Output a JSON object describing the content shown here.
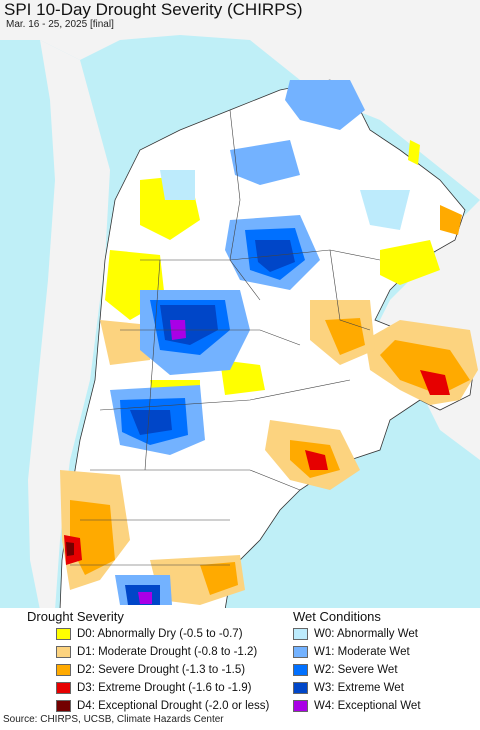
{
  "map": {
    "title": "SPI 10-Day Drought Severity (CHIRPS)",
    "subtitle": "Mar. 16 - 25, 2025 [final]",
    "colors": {
      "ocean": "#bfeff7",
      "land": "#ffffff",
      "outside": "#f3f3f3",
      "border": "#333333"
    }
  },
  "legend": {
    "drought_title": "Drought Severity",
    "wet_title": "Wet Conditions",
    "drought_items": [
      {
        "label": "D0: Abnormally Dry (-0.5 to -0.7)",
        "color": "#ffff00"
      },
      {
        "label": "D1: Moderate Drought (-0.8 to -1.2)",
        "color": "#fcd37f"
      },
      {
        "label": "D2: Severe Drought (-1.3 to -1.5)",
        "color": "#ffaa00"
      },
      {
        "label": "D3: Extreme Drought (-1.6 to -1.9)",
        "color": "#e60000"
      },
      {
        "label": "D4: Exceptional Drought (-2.0 or less)",
        "color": "#730000"
      }
    ],
    "wet_items": [
      {
        "label": "W0: Abnormally Wet",
        "color": "#bdebfc"
      },
      {
        "label": "W1: Moderate Wet",
        "color": "#73b2ff"
      },
      {
        "label": "W2: Severe Wet",
        "color": "#0070ff"
      },
      {
        "label": "W3: Extreme Wet",
        "color": "#0046c8"
      },
      {
        "label": "W4: Exceptional Wet",
        "color": "#a900e6"
      }
    ]
  },
  "footer": {
    "source": "Source: CHIRPS, UCSB, Climate Hazards Center"
  }
}
